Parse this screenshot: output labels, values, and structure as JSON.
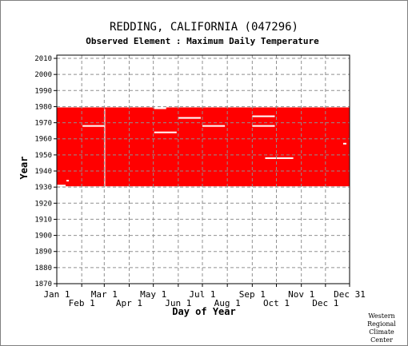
{
  "chart_data": {
    "type": "heatmap",
    "title": "REDDING, CALIFORNIA   (047296)",
    "subtitle": "Observed Element : Maximum Daily Temperature",
    "xlabel": "Day of Year",
    "ylabel": "Year",
    "xlim": [
      1,
      365
    ],
    "ylim": [
      1870,
      2012
    ],
    "y_ticks": [
      1870,
      1880,
      1890,
      1900,
      1910,
      1920,
      1930,
      1940,
      1950,
      1960,
      1970,
      1980,
      1990,
      2000,
      2010
    ],
    "x_ticks_top_row": [
      {
        "label": "Jan 1",
        "day": 1
      },
      {
        "label": "Mar 1",
        "day": 60
      },
      {
        "label": "May 1",
        "day": 121
      },
      {
        "label": "Jul 1",
        "day": 182
      },
      {
        "label": "Sep 1",
        "day": 244
      },
      {
        "label": "Nov 1",
        "day": 305
      },
      {
        "label": "Dec 31",
        "day": 365
      }
    ],
    "x_ticks_bottom_row": [
      {
        "label": "Feb 1",
        "day": 32
      },
      {
        "label": "Apr 1",
        "day": 91
      },
      {
        "label": "Jun 1",
        "day": 152
      },
      {
        "label": "Aug 1",
        "day": 213
      },
      {
        "label": "Oct 1",
        "day": 274
      },
      {
        "label": "Dec 1",
        "day": 335
      }
    ],
    "grid": true,
    "data_color": "#ff0000",
    "missing_color": "#ffffff",
    "observed_blocks": [
      {
        "day_start": 1,
        "day_end": 365,
        "year_start": 1931,
        "year_end": 1979
      }
    ],
    "missing_gaps": [
      {
        "day_start": 1,
        "day_end": 12,
        "year": 1931
      },
      {
        "day_start": 13,
        "day_end": 16,
        "year": 1934
      },
      {
        "day_start": 33,
        "day_end": 60,
        "year": 1968
      },
      {
        "day_start": 60,
        "day_end": 60,
        "year_start": 1931,
        "year_end": 1978
      },
      {
        "day_start": 122,
        "day_end": 137,
        "year": 1979
      },
      {
        "day_start": 122,
        "day_end": 150,
        "year": 1964
      },
      {
        "day_start": 152,
        "day_end": 180,
        "year": 1973
      },
      {
        "day_start": 182,
        "day_end": 210,
        "year": 1968
      },
      {
        "day_start": 244,
        "day_end": 272,
        "year": 1974
      },
      {
        "day_start": 244,
        "day_end": 272,
        "year": 1968
      },
      {
        "day_start": 260,
        "day_end": 295,
        "year": 1948
      },
      {
        "day_start": 357,
        "day_end": 361,
        "year": 1957
      }
    ]
  },
  "credit": [
    "Western",
    "Regional",
    "Climate",
    "Center"
  ]
}
